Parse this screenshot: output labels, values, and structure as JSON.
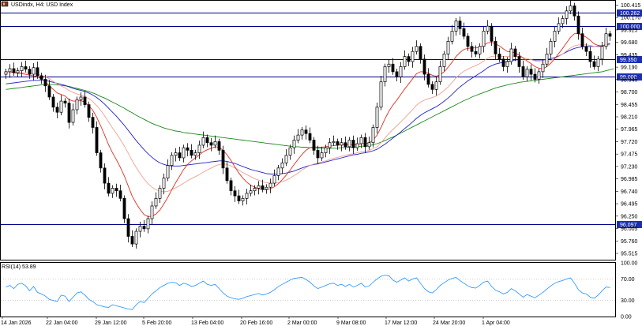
{
  "symbol_icon": "chart-symbol-icon",
  "chart_title": "USDindx, H4:  USD Index",
  "rsi_title": "RSI(14) 53.89",
  "colors": {
    "up_candle": "#000000",
    "down_candle": "#000000",
    "level_line": "#00008b",
    "level_badge": "#1c2fb3",
    "ma_fast": "#e03020",
    "ma_mid": "#f0a090",
    "ma_blue": "#2222cc",
    "ma_green": "#1a8a1a",
    "rsi_line": "#1e90ff",
    "grid": "#b0b0b0"
  },
  "chart_data": {
    "type": "candlestick",
    "price_axis_ticks": [
      100.415,
      100.17,
      99.925,
      99.68,
      99.435,
      99.19,
      98.945,
      98.7,
      98.455,
      98.21,
      97.965,
      97.72,
      97.475,
      97.23,
      96.985,
      96.74,
      96.495,
      96.25,
      96.005,
      95.76,
      95.515
    ],
    "price_axis_labels": [
      "100.415",
      "100.170",
      "99.925",
      "99.680",
      "99.435",
      "99.190",
      "98.945",
      "98.700",
      "98.455",
      "98.210",
      "97.965",
      "97.720",
      "97.475",
      "97.230",
      "96.985",
      "96.740",
      "96.495",
      "96.250",
      "96.005",
      "95.760",
      "95.515"
    ],
    "ylim": [
      95.39,
      100.5
    ],
    "levels": [
      {
        "value": 100.262,
        "label": "100.262"
      },
      {
        "value": 100.0,
        "label": "100.000"
      },
      {
        "value": 99.35,
        "label": "99.350"
      },
      {
        "value": 99.0,
        "label": "99.000"
      },
      {
        "value": 96.097,
        "label": "96.097"
      }
    ],
    "x_labels": [
      "14 Jan 2026",
      "22 Jan 04:00",
      "29 Jan 12:00",
      "5 Feb 20:00",
      "13 Feb 04:00",
      "20 Feb 16:00",
      "2 Mar 00:00",
      "9 Mar 08:00",
      "17 Mar 12:00",
      "24 Mar 20:00",
      "1 Apr 04:00"
    ],
    "closes": [
      99.1,
      99.16,
      99.08,
      99.12,
      99.2,
      99.15,
      99.05,
      99.18,
      99.02,
      98.95,
      98.82,
      98.6,
      98.4,
      98.3,
      98.52,
      98.48,
      98.1,
      98.35,
      98.55,
      98.6,
      98.45,
      98.2,
      98.0,
      97.5,
      97.2,
      96.9,
      96.7,
      96.8,
      96.75,
      96.6,
      96.2,
      95.85,
      95.7,
      95.95,
      96.05,
      96.0,
      96.2,
      96.45,
      96.6,
      96.8,
      97.0,
      97.25,
      97.45,
      97.5,
      97.4,
      97.6,
      97.55,
      97.45,
      97.5,
      97.65,
      97.8,
      97.7,
      97.65,
      97.72,
      97.55,
      97.2,
      96.95,
      96.75,
      96.65,
      96.55,
      96.6,
      96.7,
      96.75,
      96.8,
      96.85,
      96.78,
      96.82,
      96.9,
      97.05,
      97.2,
      97.3,
      97.45,
      97.6,
      97.75,
      97.85,
      97.95,
      97.88,
      97.75,
      97.55,
      97.4,
      97.5,
      97.6,
      97.7,
      97.72,
      97.65,
      97.7,
      97.62,
      97.75,
      97.6,
      97.68,
      97.8,
      97.62,
      97.7,
      98.0,
      98.4,
      98.9,
      99.2,
      99.25,
      99.1,
      99.0,
      99.2,
      99.4,
      99.3,
      99.5,
      99.6,
      99.35,
      99.05,
      98.85,
      98.75,
      98.9,
      99.2,
      99.45,
      99.7,
      99.9,
      100.1,
      99.95,
      99.8,
      99.6,
      99.5,
      99.45,
      99.6,
      99.9,
      100.0,
      99.7,
      99.45,
      99.35,
      99.2,
      99.3,
      99.55,
      99.4,
      99.2,
      99.0,
      99.15,
      99.05,
      98.95,
      99.1,
      99.25,
      99.45,
      99.7,
      99.9,
      100.05,
      100.15,
      100.3,
      100.4,
      100.2,
      99.85,
      99.6,
      99.5,
      99.3,
      99.2,
      99.35,
      99.6,
      99.85,
      99.8
    ],
    "ma_fast": [
      99.1,
      99.1,
      99.08,
      99.07,
      99.06,
      99.05,
      99.03,
      99.02,
      99.0,
      98.96,
      98.9,
      98.82,
      98.75,
      98.68,
      98.65,
      98.62,
      98.55,
      98.52,
      98.52,
      98.53,
      98.5,
      98.43,
      98.34,
      98.2,
      98.03,
      97.85,
      97.66,
      97.5,
      97.36,
      97.21,
      97.04,
      96.84,
      96.64,
      96.5,
      96.38,
      96.28,
      96.24,
      96.25,
      96.29,
      96.37,
      96.49,
      96.62,
      96.77,
      96.91,
      97.04,
      97.17,
      97.27,
      97.34,
      97.4,
      97.46,
      97.52,
      97.56,
      97.59,
      97.62,
      97.61,
      97.55,
      97.46,
      97.35,
      97.22,
      97.1,
      97.0,
      96.92,
      96.86,
      96.82,
      96.79,
      96.77,
      96.77,
      96.79,
      96.83,
      96.89,
      96.97,
      97.06,
      97.16,
      97.27,
      97.37,
      97.47,
      97.55,
      97.6,
      97.62,
      97.61,
      97.61,
      97.62,
      97.63,
      97.64,
      97.65,
      97.66,
      97.66,
      97.66,
      97.66,
      97.66,
      97.68,
      97.68,
      97.7,
      97.75,
      97.85,
      98.0,
      98.17,
      98.32,
      98.44,
      98.54,
      98.65,
      98.76,
      98.86,
      98.96,
      99.06,
      99.1,
      99.1,
      99.07,
      99.03,
      99.01,
      99.04,
      99.1,
      99.19,
      99.29,
      99.4,
      99.48,
      99.54,
      99.56,
      99.57,
      99.57,
      99.58,
      99.62,
      99.67,
      99.68,
      99.65,
      99.61,
      99.55,
      99.5,
      99.49,
      99.47,
      99.43,
      99.37,
      99.31,
      99.26,
      99.2,
      99.17,
      99.16,
      99.2,
      99.27,
      99.36,
      99.46,
      99.56,
      99.67,
      99.78,
      99.85,
      99.85,
      99.82,
      99.78,
      99.72,
      99.65,
      99.62,
      99.61,
      99.64,
      99.66
    ],
    "ma_mid": [
      99.1,
      99.1,
      99.09,
      99.09,
      99.08,
      99.08,
      99.07,
      99.06,
      99.05,
      99.03,
      99.0,
      98.96,
      98.91,
      98.86,
      98.82,
      98.78,
      98.73,
      98.69,
      98.66,
      98.64,
      98.61,
      98.57,
      98.51,
      98.43,
      98.34,
      98.23,
      98.11,
      97.99,
      97.88,
      97.76,
      97.63,
      97.49,
      97.34,
      97.21,
      97.09,
      96.98,
      96.89,
      96.82,
      96.77,
      96.74,
      96.73,
      96.74,
      96.77,
      96.81,
      96.85,
      96.9,
      96.95,
      96.99,
      97.03,
      97.07,
      97.12,
      97.16,
      97.2,
      97.24,
      97.27,
      97.28,
      97.27,
      97.24,
      97.2,
      97.16,
      97.11,
      97.07,
      97.03,
      96.99,
      96.96,
      96.93,
      96.91,
      96.9,
      96.9,
      96.91,
      96.93,
      96.96,
      97.0,
      97.05,
      97.1,
      97.16,
      97.21,
      97.25,
      97.28,
      97.3,
      97.32,
      97.34,
      97.37,
      97.39,
      97.41,
      97.43,
      97.45,
      97.47,
      97.48,
      97.5,
      97.52,
      97.53,
      97.55,
      97.58,
      97.62,
      97.7,
      97.79,
      97.88,
      97.96,
      98.03,
      98.11,
      98.19,
      98.27,
      98.35,
      98.44,
      98.5,
      98.54,
      98.57,
      98.59,
      98.62,
      98.67,
      98.73,
      98.8,
      98.89,
      98.98,
      99.05,
      99.11,
      99.15,
      99.19,
      99.22,
      99.26,
      99.31,
      99.37,
      99.4,
      99.41,
      99.41,
      99.4,
      99.4,
      99.41,
      99.41,
      99.4,
      99.38,
      99.36,
      99.34,
      99.31,
      99.3,
      99.29,
      99.3,
      99.32,
      99.36,
      99.4,
      99.45,
      99.51,
      99.57,
      99.61,
      99.63,
      99.63,
      99.63,
      99.62,
      99.6,
      99.59,
      99.6,
      99.62,
      99.63
    ],
    "ma_blue": [
      98.86,
      98.87,
      98.88,
      98.89,
      98.9,
      98.91,
      98.92,
      98.93,
      98.93,
      98.93,
      98.93,
      98.91,
      98.89,
      98.87,
      98.85,
      98.83,
      98.8,
      98.77,
      98.75,
      98.73,
      98.71,
      98.68,
      98.64,
      98.59,
      98.53,
      98.46,
      98.38,
      98.3,
      98.22,
      98.13,
      98.04,
      97.94,
      97.84,
      97.74,
      97.65,
      97.56,
      97.48,
      97.41,
      97.35,
      97.3,
      97.27,
      97.25,
      97.24,
      97.24,
      97.24,
      97.25,
      97.26,
      97.27,
      97.28,
      97.29,
      97.3,
      97.31,
      97.32,
      97.33,
      97.34,
      97.34,
      97.33,
      97.31,
      97.29,
      97.26,
      97.23,
      97.2,
      97.17,
      97.15,
      97.13,
      97.11,
      97.09,
      97.08,
      97.08,
      97.08,
      97.09,
      97.1,
      97.12,
      97.14,
      97.17,
      97.2,
      97.23,
      97.25,
      97.27,
      97.28,
      97.3,
      97.32,
      97.34,
      97.36,
      97.38,
      97.4,
      97.42,
      97.44,
      97.46,
      97.47,
      97.49,
      97.5,
      97.52,
      97.54,
      97.57,
      97.62,
      97.67,
      97.73,
      97.79,
      97.85,
      97.91,
      97.98,
      98.04,
      98.11,
      98.18,
      98.24,
      98.29,
      98.33,
      98.37,
      98.41,
      98.46,
      98.52,
      98.58,
      98.65,
      98.73,
      98.8,
      98.86,
      98.92,
      98.97,
      99.02,
      99.07,
      99.12,
      99.18,
      99.22,
      99.25,
      99.27,
      99.29,
      99.3,
      99.32,
      99.33,
      99.34,
      99.34,
      99.34,
      99.34,
      99.33,
      99.33,
      99.33,
      99.34,
      99.36,
      99.38,
      99.41,
      99.45,
      99.49,
      99.53,
      99.56,
      99.58,
      99.59,
      99.6,
      99.6,
      99.6,
      99.6,
      99.61,
      99.63,
      99.65
    ],
    "ma_green": [
      98.75,
      98.76,
      98.77,
      98.78,
      98.79,
      98.8,
      98.81,
      98.82,
      98.83,
      98.84,
      98.85,
      98.85,
      98.85,
      98.84,
      98.83,
      98.82,
      98.81,
      98.79,
      98.77,
      98.75,
      98.73,
      98.71,
      98.68,
      98.65,
      98.61,
      98.58,
      98.54,
      98.5,
      98.46,
      98.42,
      98.38,
      98.33,
      98.29,
      98.24,
      98.2,
      98.16,
      98.12,
      98.08,
      98.05,
      98.02,
      97.99,
      97.97,
      97.95,
      97.93,
      97.92,
      97.9,
      97.89,
      97.88,
      97.87,
      97.86,
      97.85,
      97.84,
      97.83,
      97.82,
      97.81,
      97.8,
      97.79,
      97.78,
      97.77,
      97.76,
      97.75,
      97.74,
      97.73,
      97.72,
      97.71,
      97.7,
      97.69,
      97.68,
      97.67,
      97.66,
      97.65,
      97.64,
      97.63,
      97.62,
      97.62,
      97.61,
      97.61,
      97.6,
      97.6,
      97.59,
      97.59,
      97.59,
      97.59,
      97.59,
      97.59,
      97.6,
      97.6,
      97.61,
      97.61,
      97.62,
      97.63,
      97.63,
      97.64,
      97.66,
      97.68,
      97.71,
      97.74,
      97.78,
      97.81,
      97.85,
      97.89,
      97.93,
      97.97,
      98.01,
      98.05,
      98.09,
      98.13,
      98.17,
      98.21,
      98.25,
      98.29,
      98.33,
      98.37,
      98.41,
      98.45,
      98.49,
      98.53,
      98.56,
      98.6,
      98.63,
      98.66,
      98.69,
      98.72,
      98.75,
      98.78,
      98.8,
      98.82,
      98.84,
      98.86,
      98.87,
      98.89,
      98.9,
      98.91,
      98.92,
      98.93,
      98.94,
      98.95,
      98.96,
      98.97,
      98.98,
      98.99,
      99.0,
      99.01,
      99.02,
      99.03,
      99.04,
      99.05,
      99.06,
      99.07,
      99.08,
      99.09,
      99.1,
      99.12,
      99.14,
      99.16
    ],
    "rsi": {
      "ylim": [
        0,
        100
      ],
      "axis_ticks": [
        100,
        70,
        30,
        0
      ],
      "axis_labels": [
        "100.00",
        "70.00",
        "30.00",
        "0.00"
      ],
      "levels": [
        70,
        30
      ],
      "values": [
        55,
        58,
        52,
        60,
        62,
        57,
        48,
        56,
        45,
        42,
        38,
        32,
        30,
        28,
        40,
        38,
        28,
        36,
        44,
        46,
        40,
        32,
        28,
        22,
        20,
        18,
        17,
        22,
        20,
        18,
        16,
        14,
        13,
        22,
        28,
        26,
        34,
        42,
        48,
        54,
        58,
        62,
        64,
        63,
        58,
        62,
        60,
        56,
        58,
        62,
        66,
        60,
        58,
        60,
        52,
        44,
        38,
        35,
        33,
        32,
        34,
        37,
        39,
        41,
        43,
        40,
        42,
        45,
        50,
        56,
        60,
        64,
        68,
        71,
        72,
        73,
        69,
        64,
        57,
        52,
        55,
        58,
        61,
        62,
        58,
        60,
        56,
        60,
        55,
        58,
        62,
        55,
        57,
        64,
        70,
        75,
        77,
        76,
        68,
        64,
        68,
        72,
        66,
        70,
        72,
        62,
        52,
        46,
        44,
        50,
        58,
        63,
        68,
        71,
        73,
        67,
        62,
        57,
        54,
        53,
        58,
        64,
        66,
        56,
        49,
        46,
        42,
        45,
        52,
        48,
        42,
        36,
        41,
        38,
        35,
        40,
        45,
        51,
        57,
        62,
        65,
        67,
        70,
        72,
        62,
        50,
        44,
        42,
        36,
        34,
        40,
        48,
        55,
        54
      ]
    }
  }
}
